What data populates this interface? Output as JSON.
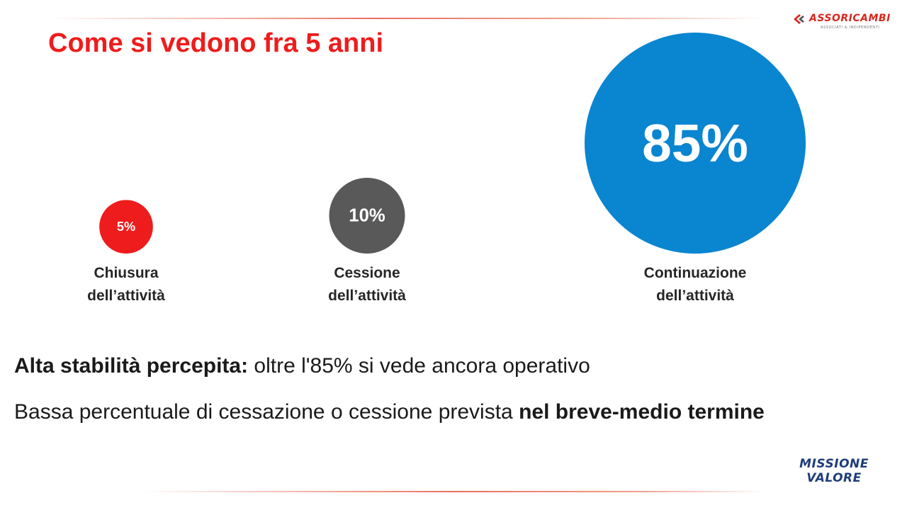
{
  "header": {
    "title": "Come si vedono fra 5 anni",
    "brand": "ASSORICAMBI",
    "brand_tagline": "ASSOCIATI & INDIPENDENTI"
  },
  "chart_data": {
    "type": "bubble",
    "categories": [
      "Chiusura dell’attività",
      "Cessione dell’attività",
      "Continuazione dell’attività"
    ],
    "values": [
      5,
      10,
      85
    ],
    "data_labels": [
      "5%",
      "10%",
      "85%"
    ],
    "label_lines": [
      [
        "Chiusura",
        "dell’attività"
      ],
      [
        "Cessione",
        "dell’attività"
      ],
      [
        "Continuazione",
        "dell’attività"
      ]
    ],
    "colors": [
      "#ee1c1c",
      "#595959",
      "#0a85d0"
    ]
  },
  "summary": {
    "line1_bold": "Alta stabilità percepita:",
    "line1_rest": " oltre l'85% si vede ancora operativo",
    "line2_rest": "Bassa percentuale di cessazione o cessione prevista ",
    "line2_bold": "nel breve-medio termine"
  },
  "footer": {
    "logo_line1": "MISSIONE",
    "logo_line2": "VALORE"
  },
  "colors": {
    "title": "#ee1c1c",
    "text": "#1a1a1a",
    "footer_logo": "#1f3d7a"
  }
}
